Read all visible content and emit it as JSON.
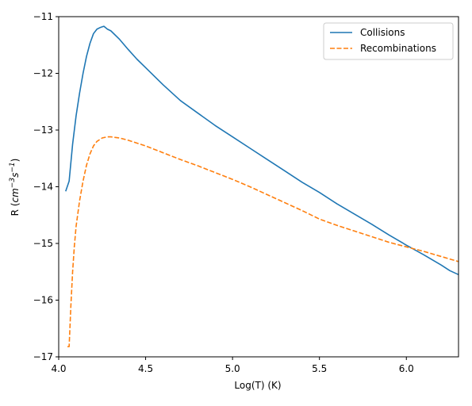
{
  "chart_data": {
    "type": "line",
    "xlabel": "Log(T) (K)",
    "ylabel": {
      "prefix": "R (",
      "unit_base": "cm",
      "unit_exp1": "−3",
      "unit_mid": "s",
      "unit_exp2": "−1",
      "suffix": ")"
    },
    "xlim": [
      4.0,
      6.3
    ],
    "ylim": [
      -17,
      -11
    ],
    "xticks": [
      4.0,
      4.5,
      5.0,
      5.5,
      6.0
    ],
    "xtick_labels": [
      "4.0",
      "4.5",
      "5.0",
      "5.5",
      "6.0"
    ],
    "yticks": [
      -17,
      -16,
      -15,
      -14,
      -13,
      -12,
      -11
    ],
    "ytick_labels": [
      "−17",
      "−16",
      "−15",
      "−14",
      "−13",
      "−12",
      "−11"
    ],
    "grid": false,
    "legend_position": "top-right",
    "series": [
      {
        "name": "Collisions",
        "color": "#1f77b4",
        "dash": "solid",
        "x": [
          4.04,
          4.06,
          4.08,
          4.1,
          4.12,
          4.14,
          4.16,
          4.18,
          4.2,
          4.22,
          4.24,
          4.26,
          4.28,
          4.3,
          4.35,
          4.4,
          4.45,
          4.5,
          4.55,
          4.6,
          4.7,
          4.8,
          4.9,
          5.0,
          5.1,
          5.2,
          5.3,
          5.4,
          5.5,
          5.6,
          5.7,
          5.8,
          5.9,
          6.0,
          6.1,
          6.2,
          6.25,
          6.3
        ],
        "y": [
          -14.08,
          -13.9,
          -13.25,
          -12.75,
          -12.35,
          -12.0,
          -11.7,
          -11.47,
          -11.3,
          -11.22,
          -11.19,
          -11.17,
          -11.22,
          -11.25,
          -11.4,
          -11.58,
          -11.75,
          -11.9,
          -12.05,
          -12.2,
          -12.48,
          -12.7,
          -12.92,
          -13.12,
          -13.32,
          -13.52,
          -13.72,
          -13.92,
          -14.1,
          -14.3,
          -14.48,
          -14.66,
          -14.85,
          -15.03,
          -15.2,
          -15.38,
          -15.48,
          -15.55
        ]
      },
      {
        "name": "Recombinations",
        "color": "#ff7f0e",
        "dash": "dashed",
        "x": [
          4.05,
          4.06,
          4.07,
          4.08,
          4.09,
          4.1,
          4.12,
          4.14,
          4.16,
          4.18,
          4.2,
          4.22,
          4.25,
          4.28,
          4.3,
          4.35,
          4.4,
          4.5,
          4.6,
          4.7,
          4.8,
          4.9,
          5.0,
          5.1,
          5.2,
          5.3,
          5.4,
          5.5,
          5.6,
          5.7,
          5.8,
          5.9,
          6.0,
          6.1,
          6.2,
          6.3
        ],
        "y": [
          -16.82,
          -16.82,
          -16.1,
          -15.5,
          -15.05,
          -14.7,
          -14.25,
          -13.9,
          -13.62,
          -13.42,
          -13.28,
          -13.2,
          -13.14,
          -13.12,
          -13.12,
          -13.14,
          -13.18,
          -13.28,
          -13.4,
          -13.52,
          -13.63,
          -13.75,
          -13.87,
          -14.0,
          -14.14,
          -14.28,
          -14.42,
          -14.57,
          -14.68,
          -14.78,
          -14.88,
          -14.98,
          -15.06,
          -15.14,
          -15.23,
          -15.32
        ]
      }
    ]
  }
}
